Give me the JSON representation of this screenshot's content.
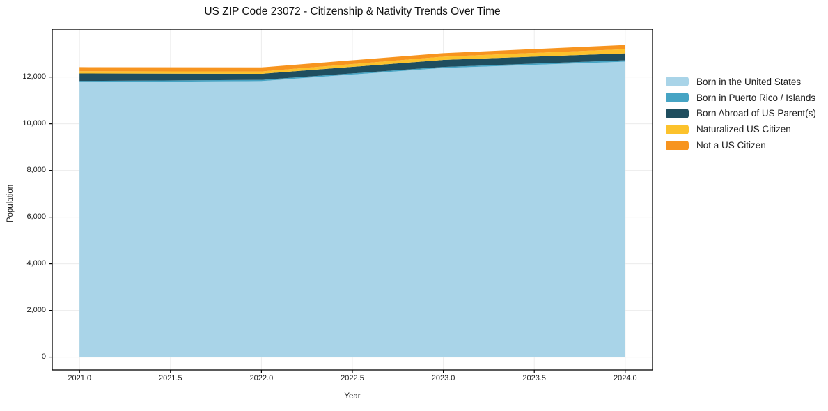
{
  "chart_data": {
    "type": "area",
    "stacked": true,
    "title": "US ZIP Code 23072 - Citizenship & Nativity Trends Over Time",
    "xlabel": "Year",
    "ylabel": "Population",
    "x": [
      2021,
      2022,
      2023,
      2024
    ],
    "series": [
      {
        "name": "Born in the United States",
        "color": "#a9d4e8",
        "values": [
          11780,
          11830,
          12390,
          12660
        ]
      },
      {
        "name": "Born in Puerto Rico / Islands",
        "color": "#46a4c4",
        "values": [
          55,
          50,
          45,
          60
        ]
      },
      {
        "name": "Born Abroad of US Parent(s)",
        "color": "#1f4e5f",
        "values": [
          320,
          260,
          300,
          295
        ]
      },
      {
        "name": "Naturalized US Citizen",
        "color": "#fcc22c",
        "values": [
          95,
          100,
          140,
          180
        ]
      },
      {
        "name": "Not a US Citizen",
        "color": "#f7941f",
        "values": [
          175,
          175,
          150,
          180
        ]
      }
    ],
    "totals": [
      12425,
      12415,
      13025,
      13375
    ],
    "xticks": [
      2021.0,
      2021.5,
      2022.0,
      2022.5,
      2023.0,
      2023.5,
      2024.0
    ],
    "xtick_labels": [
      "2021.0",
      "2021.5",
      "2022.0",
      "2022.5",
      "2023.0",
      "2023.5",
      "2024.0"
    ],
    "yticks": [
      0,
      2000,
      4000,
      6000,
      8000,
      10000,
      12000
    ],
    "ytick_labels": [
      "0",
      "2,000",
      "4,000",
      "6,000",
      "8,000",
      "10,000",
      "12,000"
    ],
    "xlim": [
      2020.85,
      2024.15
    ],
    "ylim": [
      -550,
      14050
    ],
    "grid": true,
    "legend_position": "right-outside",
    "background_color": "#ffffff"
  }
}
